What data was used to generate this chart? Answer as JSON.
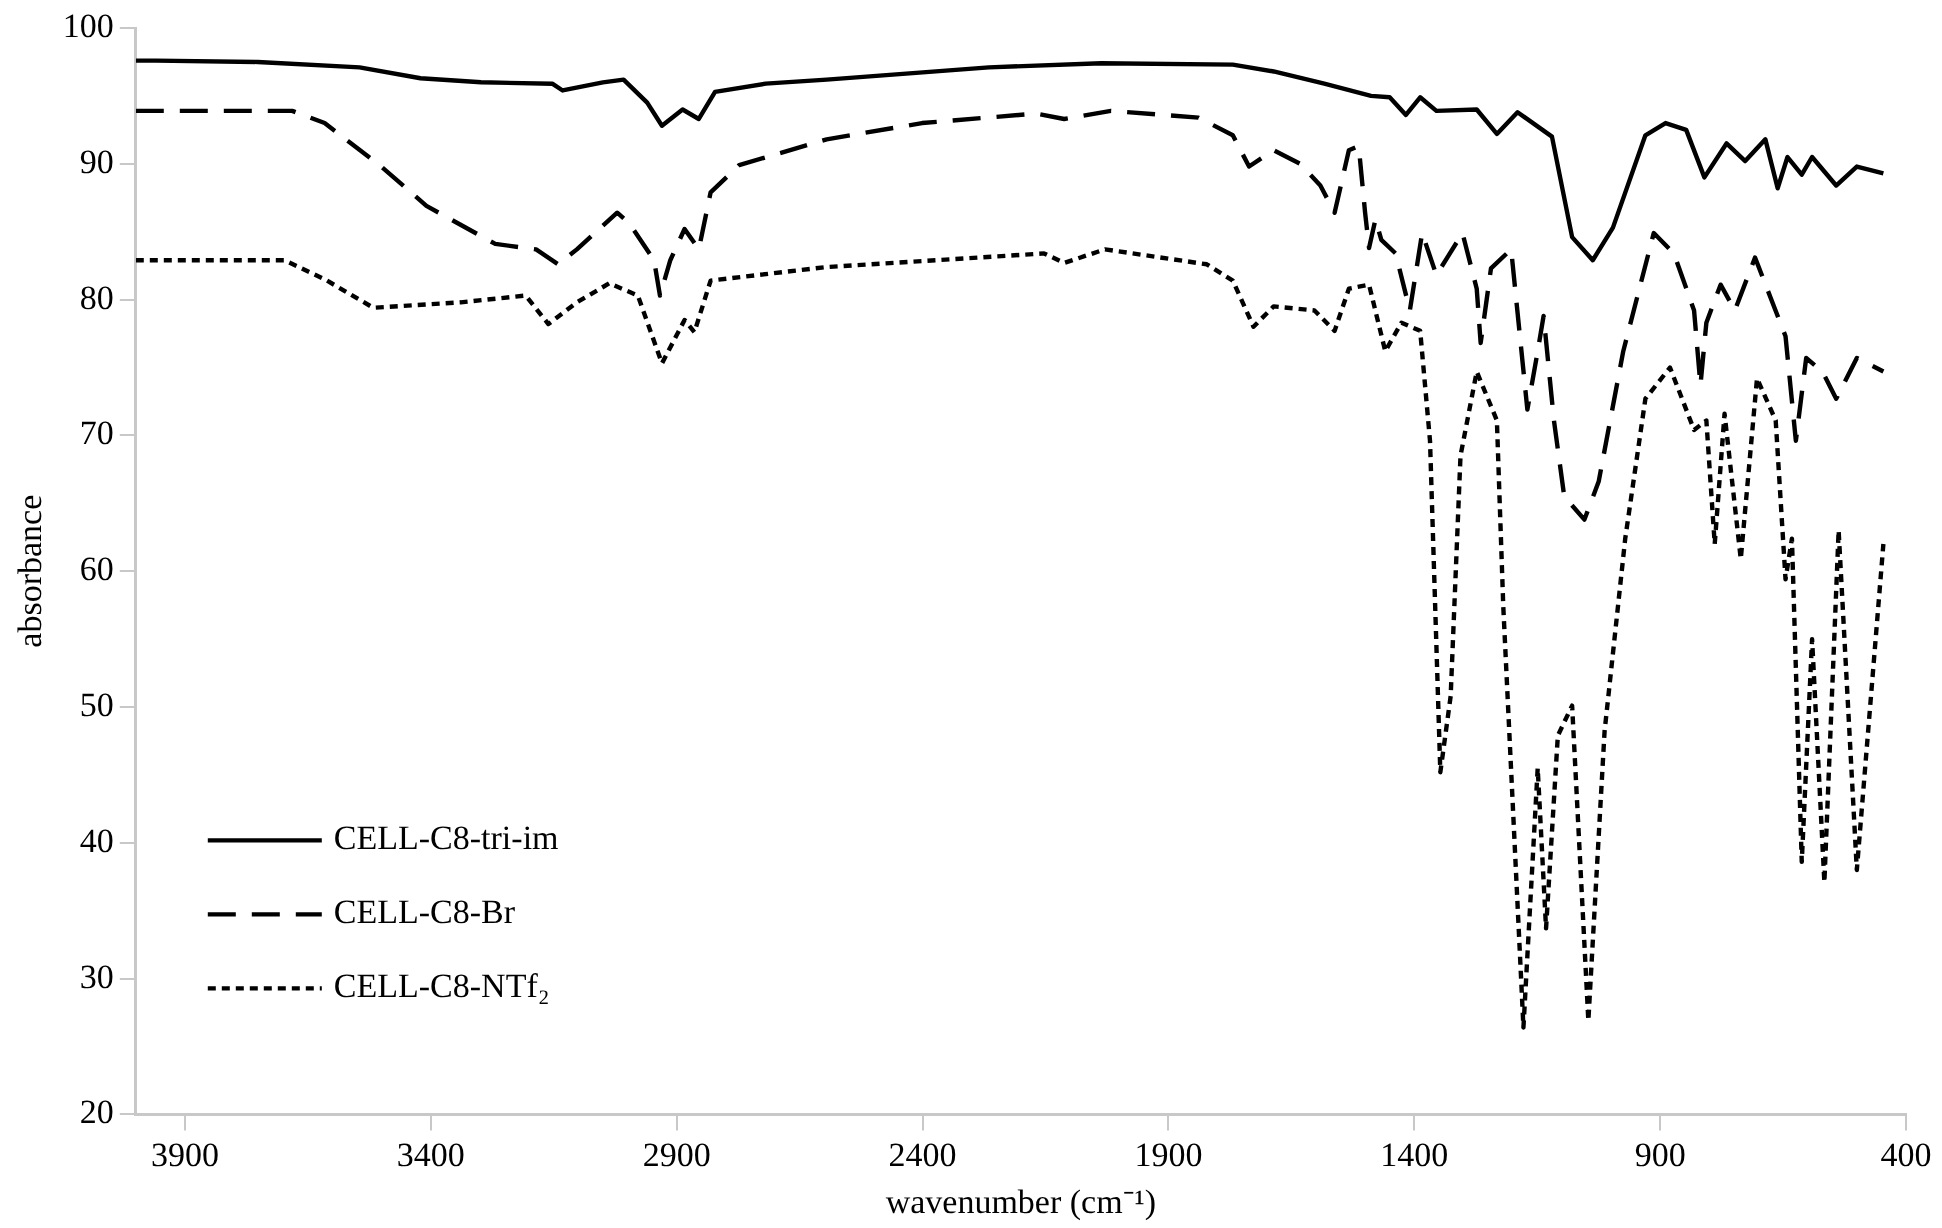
{
  "chart_data": {
    "type": "line",
    "xlabel": "wavenumber (cm⁻¹)",
    "ylabel": "absorbance",
    "xlim": [
      4000,
      400
    ],
    "xticks": [
      3900,
      3400,
      2900,
      2400,
      1900,
      1400,
      900,
      400
    ],
    "ylim": [
      20,
      100
    ],
    "yticks": [
      20,
      30,
      40,
      50,
      60,
      70,
      80,
      90,
      100
    ],
    "grid": false,
    "legend": "bottom left",
    "marker": "none",
    "series": [
      {
        "name": "CELL-C8-tri-im",
        "color": "#000000",
        "line_style": "solid",
        "x": [
          4000,
          3959,
          3752,
          3545,
          3421,
          3298,
          3153,
          3132,
          3050,
          3008,
          2960,
          2930,
          2888,
          2855,
          2822,
          2719,
          2595,
          2265,
          2037,
          1769,
          1686,
          1583,
          1488,
          1450,
          1417,
          1388,
          1355,
          1273,
          1232,
          1190,
          1120,
          1079,
          1037,
          996,
          930,
          889,
          847,
          810,
          765,
          727,
          686,
          661,
          641,
          612,
          591,
          542,
          500,
          446
        ],
        "values": [
          97.6,
          97.6,
          97.5,
          97.1,
          96.3,
          96.0,
          95.9,
          95.4,
          96.0,
          96.2,
          94.5,
          92.8,
          94.0,
          93.3,
          95.3,
          95.9,
          96.2,
          97.1,
          97.4,
          97.3,
          96.8,
          95.9,
          95.0,
          94.9,
          93.6,
          94.9,
          93.9,
          94.0,
          92.2,
          93.8,
          92.0,
          84.6,
          82.9,
          85.3,
          92.1,
          93.0,
          92.5,
          89.0,
          91.5,
          90.2,
          91.8,
          88.2,
          90.5,
          89.2,
          90.5,
          88.4,
          89.8,
          89.3
        ]
      },
      {
        "name": "CELL-C8-Br",
        "color": "#000000",
        "line_style": "dashed",
        "x": [
          4000,
          3959,
          3682,
          3616,
          3504,
          3409,
          3269,
          3186,
          3141,
          3103,
          3021,
          2996,
          2946,
          2934,
          2913,
          2884,
          2855,
          2831,
          2773,
          2595,
          2401,
          2170,
          2112,
          2017,
          1839,
          1769,
          1736,
          1686,
          1632,
          1591,
          1562,
          1533,
          1513,
          1500,
          1492,
          1479,
          1467,
          1438,
          1409,
          1384,
          1355,
          1302,
          1273,
          1265,
          1244,
          1203,
          1170,
          1149,
          1137,
          1116,
          1095,
          1054,
          1025,
          975,
          913,
          872,
          831,
          818,
          806,
          777,
          748,
          707,
          645,
          624,
          603,
          570,
          542,
          500,
          446
        ],
        "values": [
          93.9,
          93.9,
          93.9,
          93.0,
          89.9,
          86.9,
          84.1,
          83.7,
          82.6,
          83.7,
          86.4,
          85.6,
          82.9,
          80.3,
          82.9,
          85.2,
          83.7,
          87.9,
          89.9,
          91.8,
          93.0,
          93.7,
          93.3,
          93.9,
          93.4,
          92.1,
          89.8,
          91.0,
          90.0,
          88.4,
          86.4,
          91.0,
          91.3,
          86.4,
          83.8,
          85.9,
          84.4,
          83.4,
          79.2,
          84.9,
          81.8,
          84.9,
          80.8,
          76.8,
          82.3,
          83.7,
          71.9,
          76.2,
          78.8,
          71.1,
          65.5,
          63.8,
          66.6,
          76.2,
          84.9,
          83.4,
          79.2,
          73.7,
          78.3,
          81.1,
          79.2,
          83.1,
          77.3,
          69.6,
          75.7,
          74.7,
          72.7,
          75.7,
          74.7
        ]
      },
      {
        "name": "CELL-C8-NTf₂",
        "color": "#000000",
        "line_style": "dotted",
        "x": [
          4000,
          3698,
          3616,
          3517,
          3339,
          3207,
          3161,
          3103,
          3037,
          2979,
          2930,
          2884,
          2864,
          2831,
          2595,
          2153,
          2112,
          2029,
          1822,
          1769,
          1727,
          1686,
          1603,
          1562,
          1533,
          1492,
          1459,
          1426,
          1388,
          1368,
          1347,
          1326,
          1306,
          1273,
          1232,
          1219,
          1178,
          1149,
          1132,
          1108,
          1079,
          1046,
          1013,
          971,
          930,
          880,
          831,
          806,
          789,
          769,
          736,
          703,
          665,
          645,
          632,
          612,
          591,
          566,
          537,
          500,
          446
        ],
        "values": [
          82.9,
          82.9,
          81.5,
          79.4,
          79.8,
          80.3,
          78.2,
          79.8,
          81.2,
          80.3,
          75.3,
          78.5,
          77.6,
          81.4,
          82.4,
          83.4,
          82.7,
          83.7,
          82.6,
          81.4,
          78.0,
          79.5,
          79.2,
          77.7,
          80.8,
          81.1,
          76.2,
          78.3,
          77.7,
          69.6,
          45.2,
          50.8,
          68.5,
          74.7,
          71.1,
          57.4,
          26.4,
          45.5,
          33.7,
          47.9,
          50.1,
          26.9,
          48.2,
          62.4,
          72.7,
          75.0,
          70.4,
          71.1,
          62.0,
          71.6,
          60.9,
          74.2,
          71.1,
          59.4,
          62.4,
          38.6,
          55.0,
          37.1,
          63.0,
          38.0,
          62.0
        ]
      }
    ]
  }
}
